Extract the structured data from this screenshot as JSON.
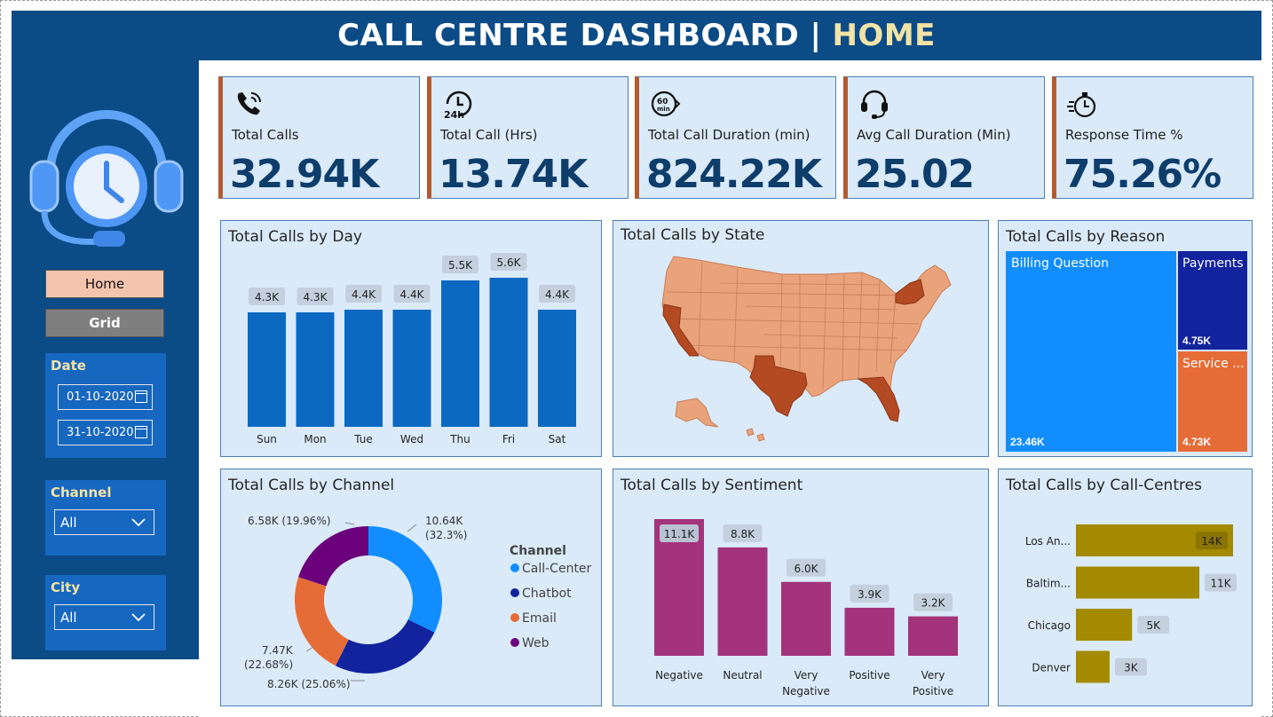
{
  "header": {
    "title": "CALL CENTRE DASHBOARD |",
    "highlight": "HOME"
  },
  "nav": {
    "home_label": "Home",
    "grid_label": "Grid"
  },
  "filters": {
    "date_title": "Date",
    "date_start": "01-10-2020",
    "date_end": "31-10-2020",
    "channel_title": "Channel",
    "channel_value": "All",
    "city_title": "City",
    "city_value": "All"
  },
  "kpis": [
    {
      "label": "Total Calls",
      "value": "32.94K",
      "icon": "phone-icon"
    },
    {
      "label": "Total Call (Hrs)",
      "value": "13.74K",
      "icon": "24h-clock-icon"
    },
    {
      "label": "Total Call Duration (min)",
      "value": "824.22K",
      "icon": "60min-timer-icon"
    },
    {
      "label": "Avg Call Duration (Min)",
      "value": "25.02",
      "icon": "headset-icon"
    },
    {
      "label": "Response Time %",
      "value": "75.26%",
      "icon": "stopwatch-icon"
    }
  ],
  "colors": {
    "header_bg": "#0b4b86",
    "card_bg": "#daeaf9",
    "kpi_accent": "#b55a2f",
    "day_bar": "#0c69c2",
    "sentiment_bar": "#a3337b",
    "callcentre_bar": "#a38a00",
    "reason_billing": "#118dff",
    "reason_payments": "#12239e",
    "reason_service": "#e66c37",
    "channel_callcenter": "#118dff",
    "channel_chatbot": "#12239e",
    "channel_email": "#e66c37",
    "channel_web": "#6b007b",
    "state_light": "#eaa27a",
    "state_dark": "#b34a22"
  },
  "chart_data": [
    {
      "id": "by_day",
      "type": "bar",
      "title": "Total Calls by Day",
      "categories": [
        "Sun",
        "Mon",
        "Tue",
        "Wed",
        "Thu",
        "Fri",
        "Sat"
      ],
      "values": [
        4300,
        4300,
        4400,
        4400,
        5500,
        5600,
        4400
      ],
      "labels": [
        "4.3K",
        "4.3K",
        "4.4K",
        "4.4K",
        "5.5K",
        "5.6K",
        "4.4K"
      ]
    },
    {
      "id": "by_state",
      "type": "map",
      "title": "Total Calls by State",
      "highlighted_states": [
        "California",
        "Texas",
        "Florida",
        "New York"
      ]
    },
    {
      "id": "by_reason",
      "type": "treemap",
      "title": "Total Calls by Reason",
      "items": [
        {
          "name": "Billing Question",
          "value": 23460,
          "label": "23.46K"
        },
        {
          "name": "Payments",
          "value": 4750,
          "label": "4.75K"
        },
        {
          "name": "Service ...",
          "value": 4730,
          "label": "4.73K"
        }
      ]
    },
    {
      "id": "by_channel",
      "type": "pie",
      "title": "Total Calls by Channel",
      "legend_title": "Channel",
      "legend_position": "right",
      "slices": [
        {
          "name": "Call-Center",
          "value": 10640,
          "label": "10.64K",
          "pct": "(32.3%)"
        },
        {
          "name": "Chatbot",
          "value": 8260,
          "label": "8.26K",
          "pct": "(25.06%)"
        },
        {
          "name": "Email",
          "value": 7470,
          "label": "7.47K",
          "pct": "(22.68%)"
        },
        {
          "name": "Web",
          "value": 6580,
          "label": "6.58K",
          "pct": "(19.96%)"
        }
      ]
    },
    {
      "id": "by_sentiment",
      "type": "bar",
      "title": "Total Calls by Sentiment",
      "categories": [
        "Negative",
        "Neutral",
        "Very Negative",
        "Positive",
        "Very Positive"
      ],
      "values": [
        11100,
        8800,
        6000,
        3900,
        3200
      ],
      "labels": [
        "11.1K",
        "8.8K",
        "6.0K",
        "3.9K",
        "3.2K"
      ]
    },
    {
      "id": "by_callcentre",
      "type": "bar",
      "orientation": "horizontal",
      "title": "Total Calls by Call-Centres",
      "categories": [
        "Los An...",
        "Baltim...",
        "Chicago",
        "Denver"
      ],
      "values": [
        14000,
        11000,
        5000,
        3000
      ],
      "labels": [
        "14K",
        "11K",
        "5K",
        "3K"
      ]
    }
  ]
}
